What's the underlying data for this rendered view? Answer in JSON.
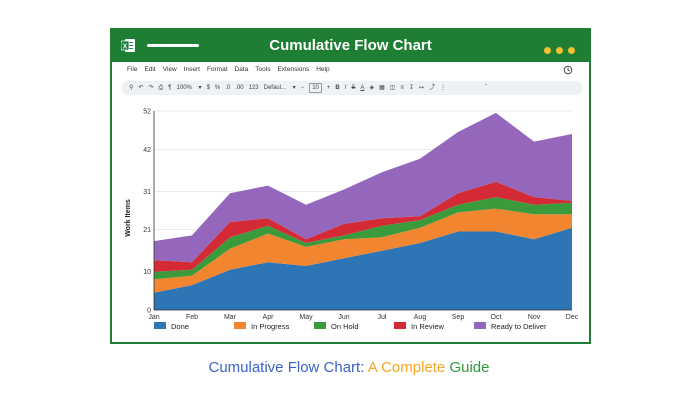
{
  "window": {
    "title": "Cumulative Flow Chart"
  },
  "menu": [
    "File",
    "Edit",
    "View",
    "Insert",
    "Format",
    "Data",
    "Tools",
    "Extensions",
    "Help"
  ],
  "toolbar": {
    "zoom": "100%",
    "currency": "$",
    "percent": "%",
    "decimal_less": ".0",
    "decimal_more": ".00",
    "number_format": "123",
    "font": "Defaul...",
    "font_size": "10",
    "bold": "B",
    "italic": "I",
    "strike": "S",
    "text_color": "A"
  },
  "caption": {
    "part1": "Cumulative Flow Chart: ",
    "part2": "A Complete ",
    "part3": "Guide",
    "color1": "#3a63c9",
    "color2": "#f5a623",
    "color3": "#2e9a3c"
  },
  "chart_data": {
    "type": "area",
    "stacked": true,
    "ylabel": "Work Items",
    "xlabel": "",
    "ylim": [
      0,
      52
    ],
    "yticks": [
      0,
      10,
      21,
      31,
      42,
      52
    ],
    "categories": [
      "Jan",
      "Feb",
      "Mar",
      "Apr",
      "May",
      "Jun",
      "Jul",
      "Aug",
      "Sep",
      "Oct",
      "Nov",
      "Dec"
    ],
    "legend_position": "bottom",
    "series": [
      {
        "name": "Done",
        "color": "#2e75b6",
        "values": [
          4.5,
          6.5,
          10.5,
          12.5,
          11.5,
          13.5,
          15.5,
          17.5,
          20.5,
          20.5,
          18.5,
          21.5
        ]
      },
      {
        "name": "In Progress",
        "color": "#f28530",
        "values": [
          3.5,
          2.5,
          5.5,
          7.5,
          5,
          5,
          3.5,
          4,
          5,
          6,
          6.5,
          3.5
        ]
      },
      {
        "name": "On Hold",
        "color": "#3b9a3b",
        "values": [
          2,
          1.5,
          3,
          2,
          1,
          1,
          3,
          2,
          2,
          3,
          2.5,
          3
        ]
      },
      {
        "name": "In Review",
        "color": "#d42a35",
        "values": [
          3,
          2,
          4,
          2,
          1,
          3,
          2,
          1,
          3,
          4,
          2,
          0.5
        ]
      },
      {
        "name": "Ready to Deliver",
        "color": "#9467bd",
        "values": [
          5,
          7,
          7.5,
          8.5,
          9,
          9,
          12,
          15,
          16,
          18,
          14.5,
          17.5
        ]
      }
    ]
  }
}
